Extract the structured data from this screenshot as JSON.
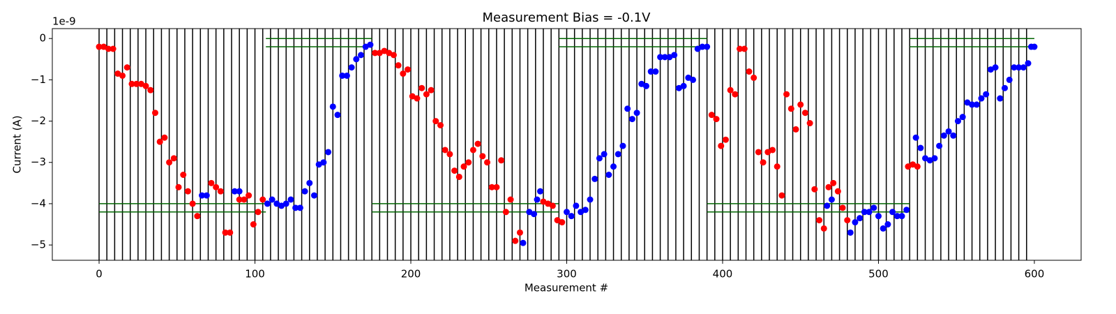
{
  "chart_data": {
    "type": "scatter",
    "title": "Measurement Bias = -0.1V",
    "xlabel": "Measurement #",
    "ylabel": "Current (A)",
    "y_offset_label": "1e-9",
    "xlim": [
      -30,
      630
    ],
    "ylim": [
      -5.37,
      0.24
    ],
    "xticks": [
      0,
      100,
      200,
      300,
      400,
      500,
      600
    ],
    "yticks": [
      {
        "value": 0,
        "label": "0"
      },
      {
        "value": -1,
        "label": "−1"
      },
      {
        "value": -2,
        "label": "−2"
      },
      {
        "value": -3,
        "label": "−3"
      },
      {
        "value": -4,
        "label": "−4"
      },
      {
        "value": -5,
        "label": "−5"
      }
    ],
    "vlines": [
      0,
      5,
      10,
      15,
      20,
      25,
      30,
      35,
      40,
      45,
      50,
      55,
      60,
      65,
      70,
      75,
      80,
      85,
      90,
      95,
      100,
      105,
      110,
      115,
      120,
      125,
      130,
      135,
      140,
      145,
      150,
      155,
      160,
      165,
      170,
      175,
      180,
      185,
      190,
      195,
      200,
      205,
      210,
      215,
      220,
      225,
      230,
      235,
      240,
      245,
      250,
      255,
      260,
      265,
      270,
      275,
      280,
      285,
      290,
      295,
      300,
      305,
      310,
      315,
      320,
      325,
      330,
      335,
      340,
      345,
      350,
      355,
      360,
      365,
      370,
      375,
      380,
      385,
      390,
      395,
      400,
      405,
      410,
      415,
      420,
      425,
      430,
      435,
      440,
      445,
      450,
      455,
      460,
      465,
      470,
      475,
      480,
      485,
      490,
      495,
      500,
      505,
      510,
      515,
      520,
      525,
      530,
      535,
      540,
      545,
      550,
      555,
      560,
      565,
      570,
      575,
      580,
      585,
      590,
      595
    ],
    "vline_color": "#000000",
    "hline_color": "#006400",
    "hlines": [
      {
        "y": 0,
        "xrange": [
          107,
          175
        ]
      },
      {
        "y": -0.2,
        "xrange": [
          107,
          175
        ]
      },
      {
        "y": 0,
        "xrange": [
          295,
          390
        ]
      },
      {
        "y": -0.2,
        "xrange": [
          295,
          390
        ]
      },
      {
        "y": 0,
        "xrange": [
          520,
          600
        ]
      },
      {
        "y": -0.2,
        "xrange": [
          520,
          600
        ]
      },
      {
        "y": -4.0,
        "xrange": [
          0,
          107
        ]
      },
      {
        "y": -4.2,
        "xrange": [
          0,
          107
        ]
      },
      {
        "y": -4.0,
        "xrange": [
          175,
          295
        ]
      },
      {
        "y": -4.2,
        "xrange": [
          175,
          295
        ]
      },
      {
        "y": -4.0,
        "xrange": [
          390,
          520
        ]
      },
      {
        "y": -4.2,
        "xrange": [
          390,
          520
        ]
      }
    ],
    "series": [
      {
        "color": "#ff0000",
        "x": [
          0,
          3,
          6,
          9,
          12,
          15,
          18,
          21,
          24,
          27,
          30,
          33,
          36,
          39,
          42,
          45,
          48,
          51,
          54,
          57,
          60,
          63,
          72,
          75,
          78,
          81,
          84,
          90,
          93,
          96,
          99,
          102,
          105,
          177,
          180,
          183,
          186,
          189,
          192,
          195,
          198,
          201,
          204,
          207,
          210,
          213,
          216,
          219,
          222,
          225,
          228,
          231,
          234,
          237,
          240,
          243,
          246,
          249,
          252,
          255,
          258,
          261,
          264,
          267,
          270,
          285,
          288,
          291,
          294,
          297,
          393,
          396,
          399,
          402,
          405,
          408,
          411,
          414,
          417,
          420,
          423,
          426,
          429,
          432,
          435,
          438,
          441,
          444,
          447,
          450,
          453,
          456,
          459,
          462,
          465,
          468,
          471,
          474,
          477,
          480,
          519,
          522,
          525
        ],
        "values": [
          -0.2,
          -0.2,
          -0.25,
          -0.25,
          -0.85,
          -0.9,
          -0.7,
          -1.1,
          -1.1,
          -1.1,
          -1.15,
          -1.25,
          -1.8,
          -2.5,
          -2.4,
          -3.0,
          -2.9,
          -3.6,
          -3.3,
          -3.7,
          -4.0,
          -4.3,
          -3.5,
          -3.6,
          -3.7,
          -4.7,
          -4.7,
          -3.9,
          -3.9,
          -3.8,
          -4.5,
          -4.2,
          -3.9,
          -0.35,
          -0.35,
          -0.3,
          -0.35,
          -0.4,
          -0.65,
          -0.85,
          -0.75,
          -1.4,
          -1.45,
          -1.2,
          -1.35,
          -1.25,
          -2.0,
          -2.1,
          -2.7,
          -2.8,
          -3.2,
          -3.35,
          -3.1,
          -3.0,
          -2.7,
          -2.55,
          -2.85,
          -3.0,
          -3.6,
          -3.6,
          -2.95,
          -4.2,
          -3.9,
          -4.9,
          -4.7,
          -3.95,
          -4.0,
          -4.05,
          -4.4,
          -4.45,
          -1.85,
          -1.95,
          -2.6,
          -2.45,
          -1.25,
          -1.35,
          -0.25,
          -0.25,
          -0.8,
          -0.95,
          -2.75,
          -3.0,
          -2.75,
          -2.7,
          -3.1,
          -3.8,
          -1.35,
          -1.7,
          -2.2,
          -1.6,
          -1.8,
          -2.05,
          -3.65,
          -4.4,
          -4.6,
          -3.6,
          -3.5,
          -3.7,
          -4.1,
          -4.4,
          -3.1,
          -3.05,
          -3.1
        ]
      },
      {
        "color": "#0000ff",
        "x": [
          66,
          69,
          87,
          90,
          108,
          111,
          114,
          117,
          120,
          123,
          126,
          129,
          132,
          135,
          138,
          141,
          144,
          147,
          150,
          153,
          156,
          159,
          162,
          165,
          168,
          171,
          174,
          272,
          276,
          279,
          281,
          283,
          300,
          303,
          306,
          309,
          312,
          315,
          318,
          321,
          324,
          327,
          330,
          333,
          336,
          339,
          342,
          345,
          348,
          351,
          354,
          357,
          360,
          363,
          366,
          369,
          372,
          375,
          378,
          381,
          384,
          387,
          390,
          467,
          470,
          482,
          485,
          488,
          491,
          494,
          497,
          500,
          503,
          506,
          509,
          512,
          515,
          518,
          524,
          527,
          530,
          533,
          536,
          539,
          542,
          545,
          548,
          551,
          554,
          557,
          560,
          563,
          566,
          569,
          572,
          575,
          578,
          581,
          584,
          587,
          590,
          593,
          596,
          598,
          600
        ],
        "values": [
          -3.8,
          -3.8,
          -3.7,
          -3.7,
          -4.0,
          -3.9,
          -4.0,
          -4.05,
          -4.0,
          -3.9,
          -4.1,
          -4.1,
          -3.7,
          -3.5,
          -3.8,
          -3.05,
          -3.0,
          -2.75,
          -1.65,
          -1.85,
          -0.9,
          -0.9,
          -0.7,
          -0.5,
          -0.4,
          -0.2,
          -0.15,
          -4.95,
          -4.2,
          -4.25,
          -3.9,
          -3.7,
          -4.2,
          -4.3,
          -4.05,
          -4.2,
          -4.15,
          -3.9,
          -3.4,
          -2.9,
          -2.8,
          -3.3,
          -3.1,
          -2.8,
          -2.6,
          -1.7,
          -1.95,
          -1.8,
          -1.1,
          -1.15,
          -0.8,
          -0.8,
          -0.45,
          -0.45,
          -0.45,
          -0.4,
          -1.2,
          -1.15,
          -0.95,
          -1.0,
          -0.25,
          -0.2,
          -0.2,
          -4.05,
          -3.9,
          -4.7,
          -4.45,
          -4.35,
          -4.2,
          -4.2,
          -4.1,
          -4.3,
          -4.6,
          -4.5,
          -4.2,
          -4.3,
          -4.3,
          -4.15,
          -2.4,
          -2.65,
          -2.9,
          -2.95,
          -2.9,
          -2.6,
          -2.35,
          -2.25,
          -2.35,
          -2.0,
          -1.9,
          -1.55,
          -1.6,
          -1.6,
          -1.45,
          -1.35,
          -0.75,
          -0.7,
          -1.45,
          -1.2,
          -1.0,
          -0.7,
          -0.7,
          -0.7,
          -0.6,
          -0.2,
          -0.2
        ]
      }
    ]
  }
}
